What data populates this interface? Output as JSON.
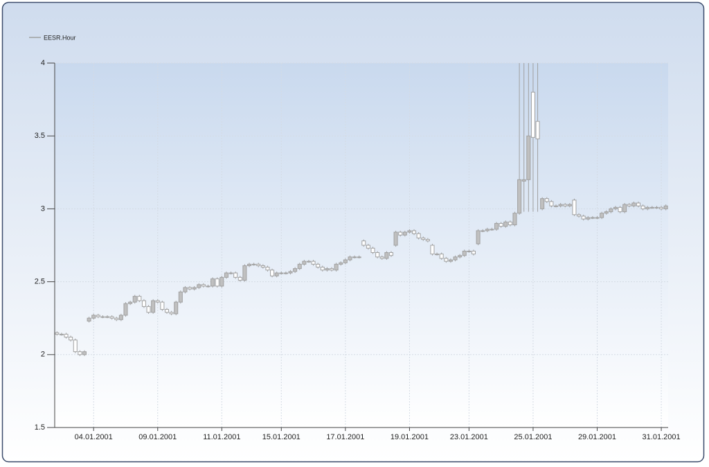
{
  "chart_data": {
    "type": "candlestick",
    "legend": "top-left",
    "grid": true,
    "up_color": "#c0c0c0",
    "down_color": "#ffffff",
    "edge_color": "#a0a0a0",
    "ylim": [
      1.5,
      4
    ],
    "yticks": [
      1.5,
      2,
      2.5,
      3,
      3.5,
      4
    ],
    "categories": [
      null,
      null,
      null,
      null,
      null,
      null,
      null,
      null,
      "04.01.2001",
      null,
      null,
      null,
      null,
      null,
      null,
      null,
      null,
      null,
      null,
      null,
      null,
      null,
      "09.01.2001",
      null,
      null,
      null,
      null,
      null,
      null,
      null,
      null,
      null,
      null,
      null,
      null,
      null,
      "11.01.2001",
      null,
      null,
      null,
      null,
      null,
      null,
      null,
      null,
      null,
      null,
      null,
      null,
      "15.01.2001",
      null,
      null,
      null,
      null,
      null,
      null,
      null,
      null,
      null,
      null,
      null,
      null,
      null,
      "17.01.2001",
      null,
      null,
      null,
      null,
      null,
      null,
      null,
      null,
      null,
      null,
      null,
      null,
      null,
      "19.01.2001",
      null,
      null,
      null,
      null,
      null,
      null,
      null,
      null,
      null,
      null,
      null,
      null,
      "23.01.2001",
      null,
      null,
      null,
      null,
      null,
      null,
      null,
      null,
      null,
      null,
      null,
      null,
      null,
      "25.01.2001",
      null,
      null,
      null,
      null,
      null,
      null,
      null,
      null,
      null,
      null,
      null,
      null,
      null,
      "29.01.2001",
      null,
      null,
      null,
      null,
      null,
      null,
      null,
      null,
      null,
      null,
      null,
      null,
      null,
      "31.01.2001",
      null
    ],
    "series": [
      {
        "name": "EESR.Hour",
        "open": [
          2.15,
          2.14,
          2.14,
          2.12,
          2.1,
          2.02,
          2.0,
          2.23,
          2.25,
          2.27,
          2.26,
          2.26,
          2.26,
          2.25,
          2.24,
          2.27,
          2.35,
          2.36,
          2.4,
          2.37,
          2.33,
          2.29,
          2.37,
          2.36,
          2.31,
          2.29,
          2.28,
          2.36,
          2.43,
          2.46,
          2.45,
          2.46,
          2.48,
          2.47,
          2.47,
          2.52,
          2.47,
          2.53,
          2.56,
          2.56,
          2.53,
          2.51,
          2.61,
          2.62,
          2.62,
          2.61,
          2.6,
          2.58,
          2.54,
          2.56,
          2.56,
          2.56,
          2.57,
          2.59,
          2.62,
          2.64,
          2.64,
          2.62,
          2.6,
          2.58,
          2.59,
          2.58,
          2.62,
          2.63,
          2.65,
          2.67,
          2.67,
          2.78,
          2.75,
          2.73,
          2.7,
          2.67,
          2.66,
          2.7,
          2.75,
          2.84,
          2.82,
          2.84,
          2.85,
          2.83,
          2.8,
          2.79,
          2.75,
          2.69,
          2.69,
          2.66,
          2.64,
          2.65,
          2.67,
          2.68,
          2.71,
          2.71,
          2.76,
          2.85,
          2.85,
          2.86,
          2.86,
          2.9,
          2.88,
          2.91,
          2.89,
          2.97,
          3.19,
          3.2,
          3.8,
          3.6,
          3.0,
          3.07,
          3.05,
          3.02,
          3.02,
          3.03,
          3.02,
          3.06,
          2.96,
          2.95,
          2.93,
          2.94,
          2.94,
          2.94,
          2.97,
          2.98,
          3.0,
          3.01,
          2.98,
          3.03,
          3.02,
          3.04,
          3.02,
          3.0,
          3.01,
          3.01,
          3.01,
          3.0
        ],
        "high": [
          2.16,
          2.15,
          2.15,
          2.13,
          2.11,
          2.03,
          2.03,
          2.26,
          2.28,
          2.28,
          2.27,
          2.27,
          2.27,
          2.26,
          2.28,
          2.36,
          2.37,
          2.41,
          2.41,
          2.38,
          2.34,
          2.38,
          2.38,
          2.37,
          2.32,
          2.3,
          2.37,
          2.44,
          2.47,
          2.47,
          2.47,
          2.49,
          2.49,
          2.48,
          2.53,
          2.53,
          2.54,
          2.57,
          2.57,
          2.57,
          2.54,
          2.62,
          2.63,
          2.63,
          2.63,
          2.62,
          2.61,
          2.59,
          2.57,
          2.57,
          2.57,
          2.58,
          2.6,
          2.63,
          2.65,
          2.65,
          2.65,
          2.63,
          2.61,
          2.6,
          2.6,
          2.63,
          2.64,
          2.66,
          2.68,
          2.68,
          2.68,
          2.79,
          2.76,
          2.74,
          2.71,
          2.68,
          2.71,
          2.71,
          2.85,
          2.85,
          2.85,
          2.86,
          2.86,
          2.84,
          2.81,
          2.8,
          2.76,
          2.7,
          2.7,
          2.67,
          2.66,
          2.68,
          2.69,
          2.72,
          2.72,
          2.72,
          2.86,
          2.86,
          2.87,
          2.87,
          2.91,
          2.91,
          2.92,
          2.92,
          2.98,
          4,
          4,
          4,
          4,
          4,
          3.08,
          3.08,
          3.06,
          3.03,
          3.04,
          3.04,
          3.04,
          3.07,
          2.97,
          2.96,
          2.95,
          2.95,
          2.95,
          2.98,
          2.99,
          3.01,
          3.02,
          3.02,
          3.04,
          3.04,
          3.05,
          3.05,
          3.03,
          3.02,
          3.02,
          3.02,
          3.02,
          3.03
        ],
        "low": [
          2.13,
          2.13,
          2.11,
          2.09,
          2.01,
          1.99,
          1.99,
          2.22,
          2.24,
          2.25,
          2.25,
          2.25,
          2.24,
          2.23,
          2.23,
          2.26,
          2.34,
          2.35,
          2.36,
          2.32,
          2.28,
          2.28,
          2.35,
          2.3,
          2.28,
          2.27,
          2.27,
          2.35,
          2.42,
          2.44,
          2.44,
          2.45,
          2.46,
          2.46,
          2.46,
          2.46,
          2.46,
          2.52,
          2.55,
          2.52,
          2.5,
          2.5,
          2.6,
          2.61,
          2.6,
          2.59,
          2.57,
          2.53,
          2.53,
          2.55,
          2.55,
          2.55,
          2.56,
          2.58,
          2.61,
          2.63,
          2.61,
          2.59,
          2.57,
          2.57,
          2.57,
          2.57,
          2.61,
          2.62,
          2.64,
          2.66,
          2.66,
          2.74,
          2.72,
          2.69,
          2.66,
          2.65,
          2.65,
          2.67,
          2.74,
          2.81,
          2.81,
          2.83,
          2.82,
          2.79,
          2.78,
          2.77,
          2.68,
          2.68,
          2.65,
          2.63,
          2.63,
          2.64,
          2.66,
          2.67,
          2.7,
          2.68,
          2.75,
          2.84,
          2.84,
          2.85,
          2.85,
          2.87,
          2.87,
          2.88,
          2.88,
          2.96,
          2.98,
          2.98,
          2.98,
          2.98,
          2.99,
          3.04,
          3.01,
          3.01,
          3.01,
          3.01,
          3.01,
          2.95,
          2.94,
          2.92,
          2.92,
          2.93,
          2.93,
          2.93,
          2.96,
          2.97,
          2.99,
          2.97,
          2.97,
          3.01,
          3.01,
          3.01,
          2.99,
          2.99,
          3.0,
          3.0,
          2.99,
          2.99
        ],
        "close": [
          2.14,
          2.14,
          2.12,
          2.1,
          2.02,
          2.0,
          2.02,
          2.25,
          2.27,
          2.26,
          2.26,
          2.26,
          2.25,
          2.24,
          2.27,
          2.35,
          2.36,
          2.4,
          2.37,
          2.33,
          2.29,
          2.37,
          2.36,
          2.31,
          2.29,
          2.28,
          2.36,
          2.43,
          2.46,
          2.45,
          2.46,
          2.48,
          2.47,
          2.47,
          2.52,
          2.47,
          2.53,
          2.56,
          2.56,
          2.53,
          2.51,
          2.61,
          2.62,
          2.62,
          2.61,
          2.6,
          2.58,
          2.54,
          2.56,
          2.56,
          2.56,
          2.57,
          2.59,
          2.62,
          2.64,
          2.64,
          2.62,
          2.6,
          2.58,
          2.59,
          2.58,
          2.62,
          2.63,
          2.65,
          2.67,
          2.67,
          2.67,
          2.75,
          2.73,
          2.7,
          2.67,
          2.66,
          2.7,
          2.68,
          2.84,
          2.82,
          2.84,
          2.85,
          2.83,
          2.8,
          2.79,
          2.78,
          2.69,
          2.69,
          2.66,
          2.64,
          2.65,
          2.67,
          2.68,
          2.71,
          2.71,
          2.69,
          2.85,
          2.85,
          2.86,
          2.86,
          2.9,
          2.88,
          2.91,
          2.89,
          2.97,
          3.2,
          3.2,
          3.5,
          3.49,
          3.48,
          3.07,
          3.05,
          3.02,
          3.02,
          3.03,
          3.02,
          3.03,
          2.96,
          2.95,
          2.93,
          2.94,
          2.94,
          2.94,
          2.97,
          2.98,
          3.0,
          3.01,
          2.98,
          3.03,
          3.02,
          3.04,
          3.02,
          3.0,
          3.01,
          3.01,
          3.01,
          3.0,
          3.02
        ]
      }
    ]
  }
}
